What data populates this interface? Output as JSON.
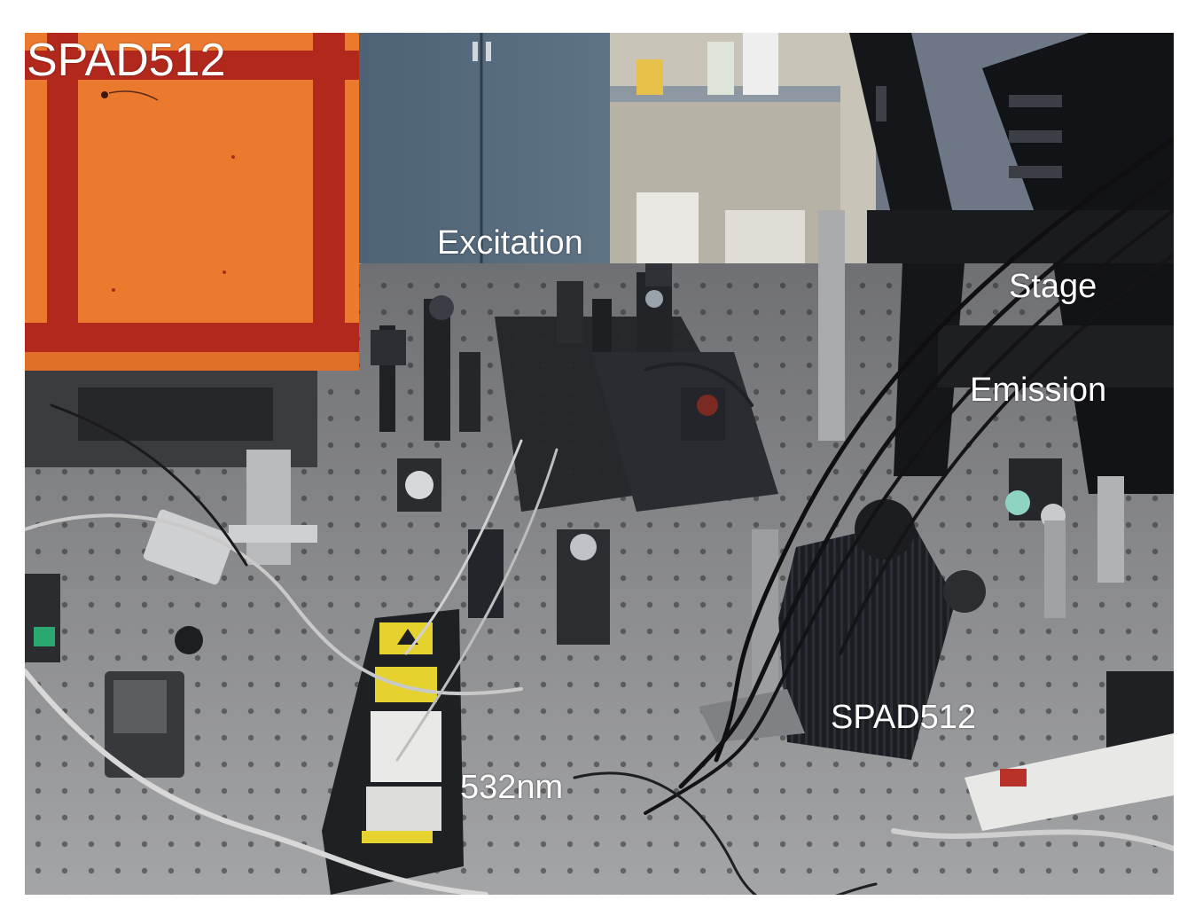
{
  "inset": {
    "title": "SPAD512",
    "background_color": "#ec7a2e",
    "grid_color": "#b3281c"
  },
  "labels": {
    "excitation": "Excitation",
    "stage": "Stage",
    "emission": "Emission",
    "detector": "SPAD512",
    "laser": "532nm"
  },
  "colors": {
    "table": "#8d8e90",
    "hole": "#2e2f31",
    "cabinet": "#4d6275",
    "laser_box": "#1e2124",
    "warning_label": "#e6d22e"
  }
}
